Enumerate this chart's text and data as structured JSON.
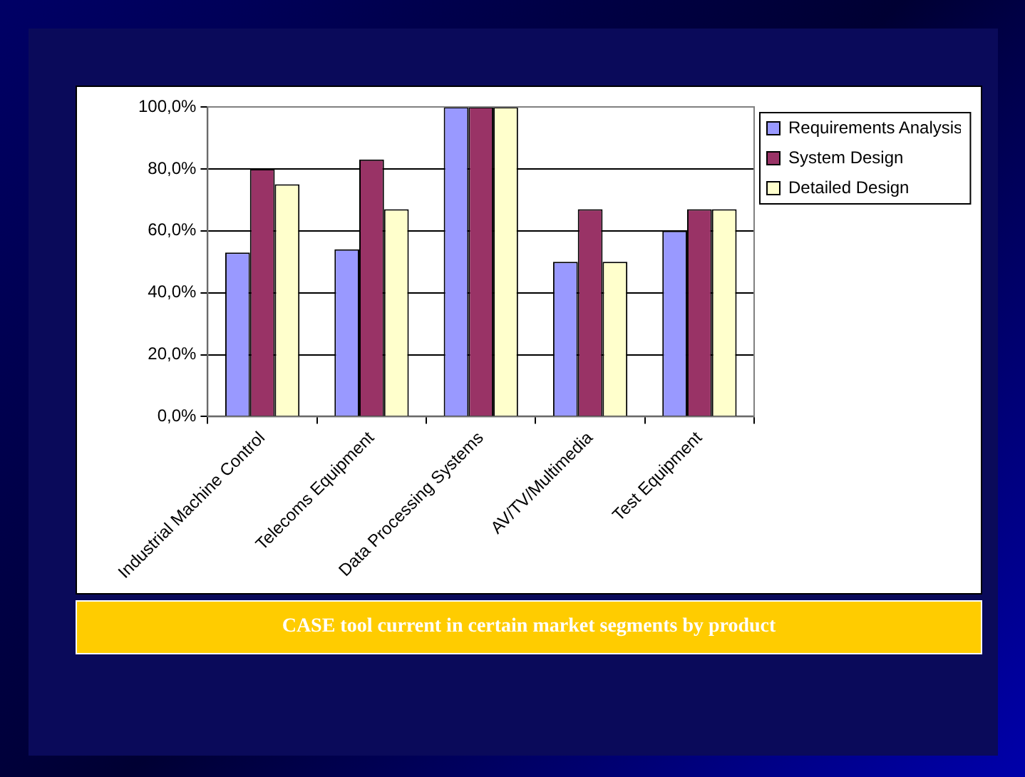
{
  "chart_data": {
    "type": "bar",
    "title": "CASE tool current in certain market segments by product",
    "categories": [
      "Industrial Machine Control",
      "Telecoms Equipment",
      "Data Processing Systems",
      "AV/TV/Multimedia",
      "Test Equipment"
    ],
    "series": [
      {
        "name": "Requirements Analysis",
        "color": "#9999ff",
        "values": [
          53,
          54,
          100,
          50,
          60
        ]
      },
      {
        "name": "System Design",
        "color": "#993366",
        "values": [
          80,
          83,
          100,
          67,
          67
        ]
      },
      {
        "name": "Detailed Design",
        "color": "#ffffcc",
        "values": [
          75,
          67,
          100,
          50,
          67
        ]
      }
    ],
    "ylim": [
      0,
      100
    ],
    "yticks": [
      {
        "value": 0,
        "label": "0,0%"
      },
      {
        "value": 20,
        "label": "20,0%"
      },
      {
        "value": 40,
        "label": "40,0%"
      },
      {
        "value": 60,
        "label": "60,0%"
      },
      {
        "value": 80,
        "label": "80,0%"
      },
      {
        "value": 100,
        "label": "100,0%"
      }
    ],
    "grid": "y",
    "legend": "top right"
  }
}
